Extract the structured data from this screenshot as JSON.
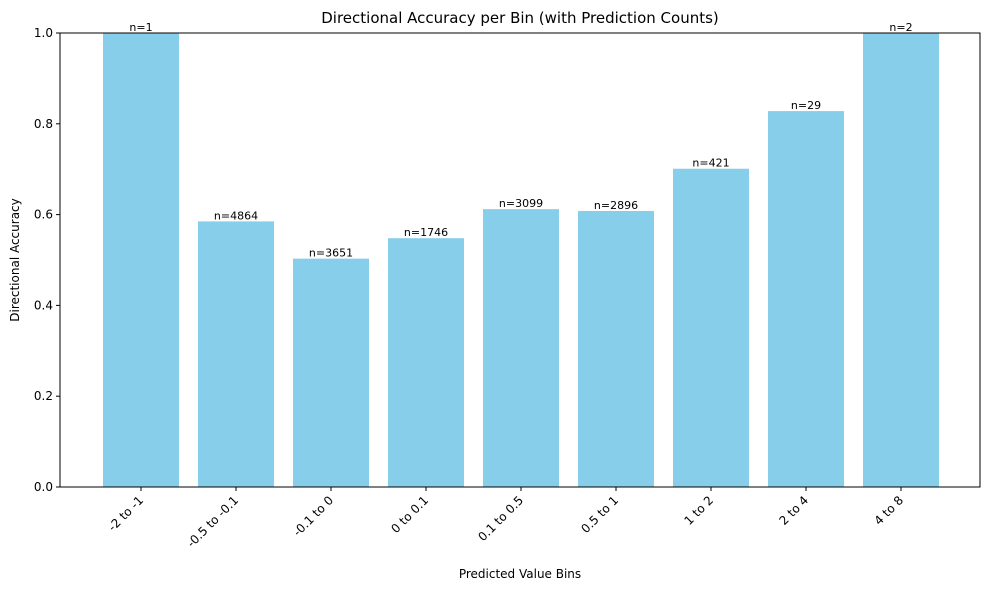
{
  "chart_data": {
    "type": "bar",
    "title": "Directional Accuracy per Bin (with Prediction Counts)",
    "xlabel": "Predicted Value Bins",
    "ylabel": "Directional Accuracy",
    "categories": [
      "-2 to -1",
      "-0.5 to -0.1",
      "-0.1 to 0",
      "0 to 0.1",
      "0.1 to 0.5",
      "0.5 to 1",
      "1 to 2",
      "2 to 4",
      "4 to 8"
    ],
    "values": [
      1.0,
      0.585,
      0.503,
      0.548,
      0.612,
      0.608,
      0.701,
      0.828,
      1.0
    ],
    "counts": [
      "n=1",
      "n=4864",
      "n=3651",
      "n=1746",
      "n=3099",
      "n=2896",
      "n=421",
      "n=29",
      "n=2"
    ],
    "ylim": [
      0,
      1.0
    ],
    "yticks": [
      "0.0",
      "0.2",
      "0.4",
      "0.6",
      "0.8",
      "1.0"
    ],
    "bar_color": "#87ceeb",
    "grid": false,
    "legend": "none"
  }
}
